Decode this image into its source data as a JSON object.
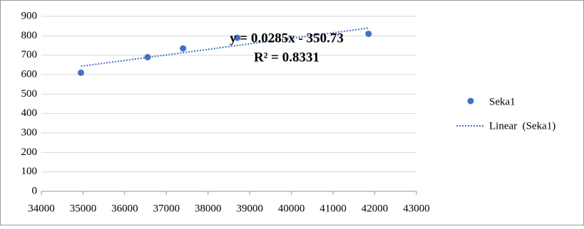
{
  "chart_data": {
    "type": "scatter",
    "series": [
      {
        "name": "Seka1",
        "color": "#4472c4",
        "x": [
          34950,
          36550,
          37400,
          38700,
          41850
        ],
        "values": [
          610,
          690,
          735,
          790,
          810
        ]
      }
    ],
    "trendline": {
      "name": "Linear  (Seka1)",
      "color": "#4472c4",
      "equation": "y = 0.0285x - 350.73",
      "r_squared": "R² = 0.8331"
    },
    "xlim": [
      34000,
      43000
    ],
    "xticks": [
      34000,
      35000,
      36000,
      37000,
      38000,
      39000,
      40000,
      41000,
      42000,
      43000
    ],
    "ylim": [
      0,
      900
    ],
    "yticks": [
      0,
      100,
      200,
      300,
      400,
      500,
      600,
      700,
      800,
      900
    ],
    "grid": true,
    "legend": "right"
  }
}
